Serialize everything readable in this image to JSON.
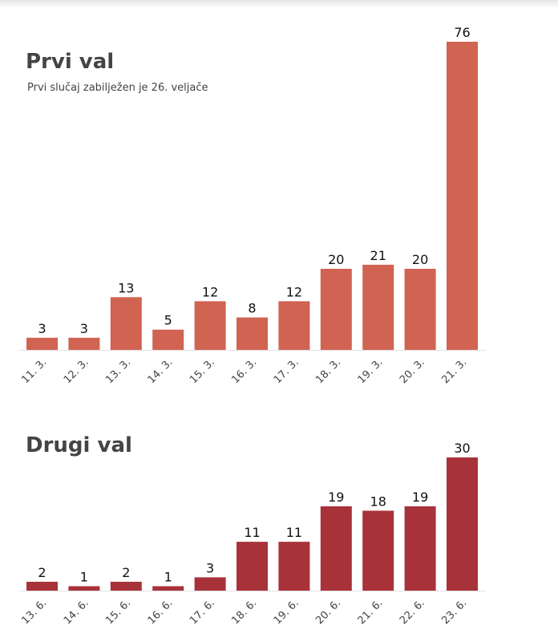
{
  "chart_data": [
    {
      "type": "bar",
      "title": "Prvi val",
      "subtitle": "Prvi slučaj zabilježen je 26. veljače",
      "categories": [
        "11. 3.",
        "12. 3.",
        "13. 3.",
        "14. 3.",
        "15. 3.",
        "16. 3.",
        "17. 3.",
        "18. 3.",
        "19. 3.",
        "20. 3.",
        "21. 3."
      ],
      "values": [
        3,
        3,
        13,
        5,
        12,
        8,
        12,
        20,
        21,
        20,
        76
      ],
      "color": "#d06352",
      "xlabel": "",
      "ylabel": "",
      "ylim": [
        0,
        76
      ]
    },
    {
      "type": "bar",
      "title": "Drugi val",
      "categories": [
        "13. 6.",
        "14. 6.",
        "15. 6.",
        "16. 6.",
        "17. 6.",
        "18. 6.",
        "19. 6.",
        "20. 6.",
        "21. 6.",
        "22. 6.",
        "23. 6."
      ],
      "values": [
        2,
        1,
        2,
        1,
        3,
        11,
        11,
        19,
        18,
        19,
        30
      ],
      "color": "#a8323a",
      "xlabel": "",
      "ylabel": "",
      "ylim": [
        0,
        30
      ]
    }
  ]
}
